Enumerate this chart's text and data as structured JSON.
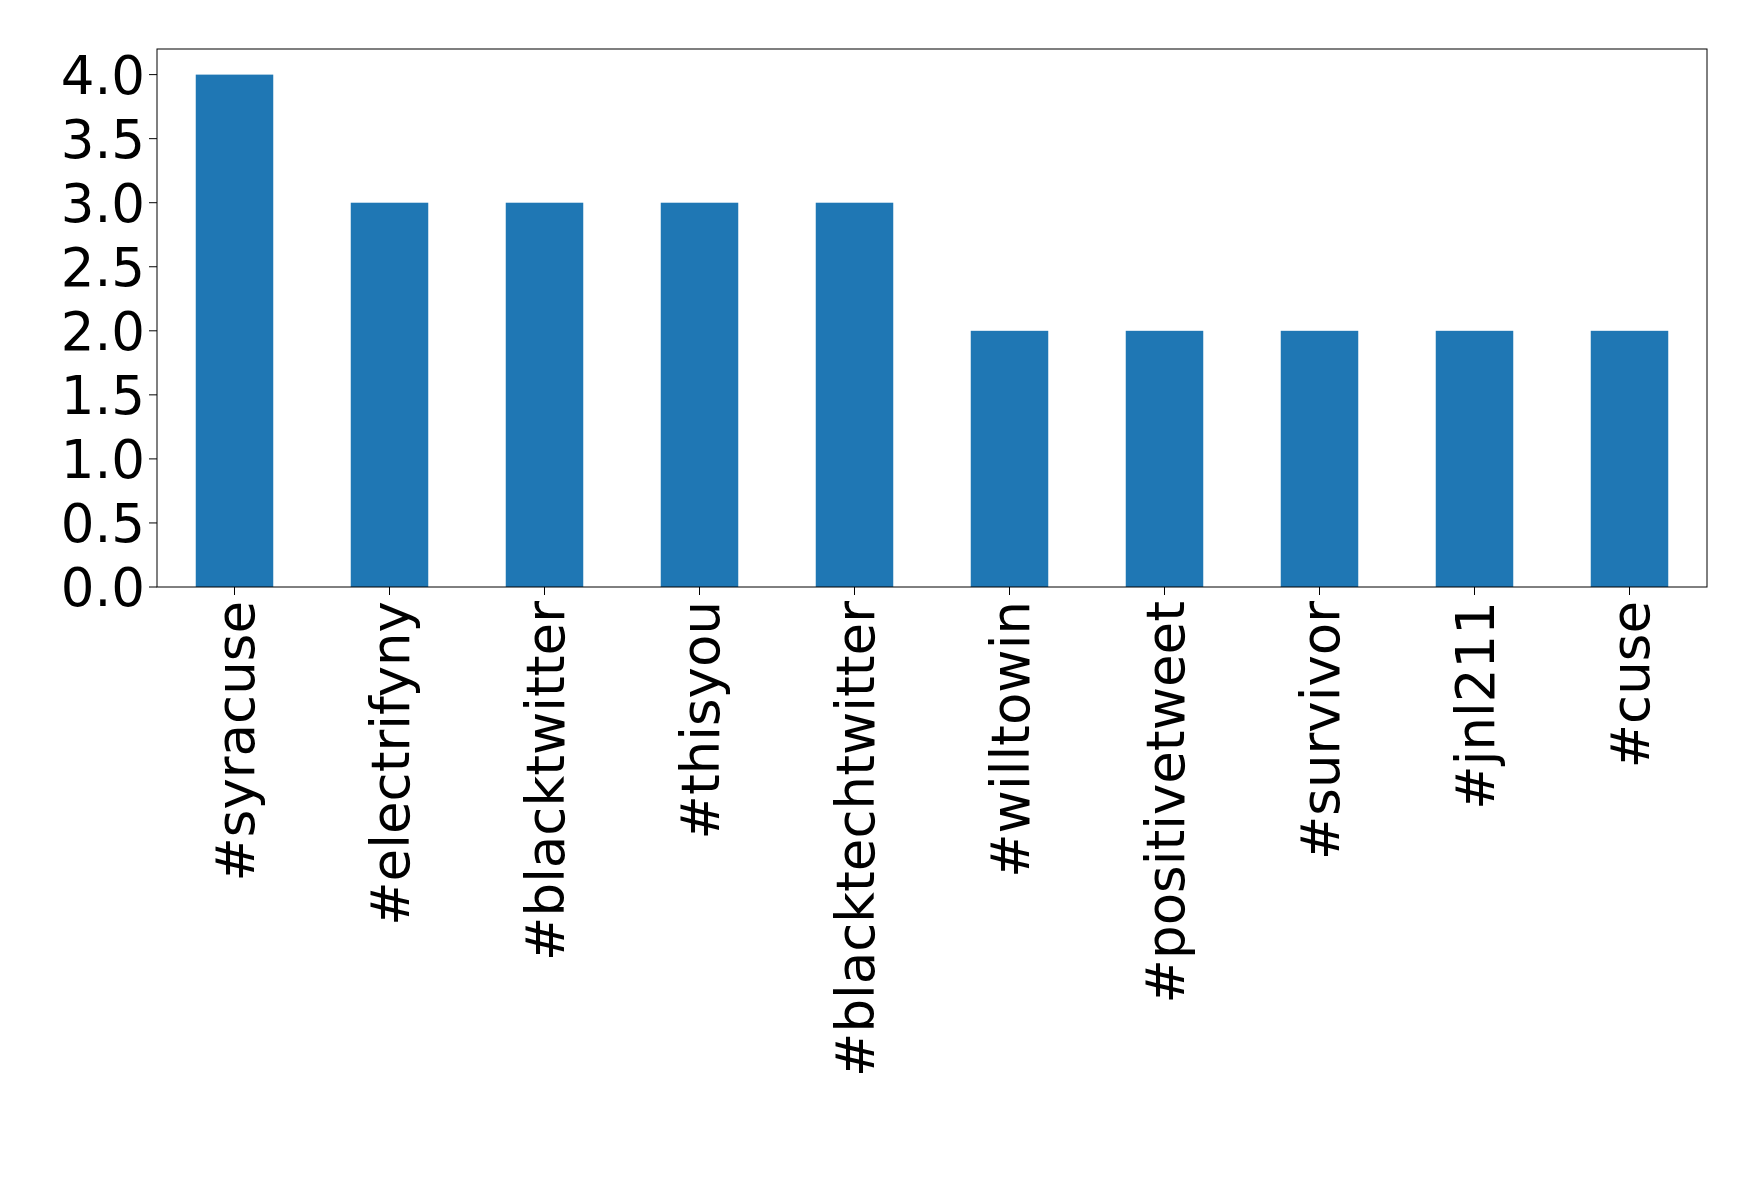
{
  "chart_data": {
    "type": "bar",
    "categories": [
      "#syracuse",
      "#electrifyny",
      "#blacktwitter",
      "#thisyou",
      "#blacktechtwitter",
      "#willtowin",
      "#positivetweet",
      "#survivor",
      "#jnl211",
      "#cuse"
    ],
    "values": [
      4,
      3,
      3,
      3,
      3,
      2,
      2,
      2,
      2,
      2
    ],
    "color": "#1f77b4",
    "ylim": [
      0,
      4.2
    ],
    "yticks": [
      {
        "value": 0,
        "label": "0.0"
      },
      {
        "value": 0.5,
        "label": "0.5"
      },
      {
        "value": 1,
        "label": "1.0"
      },
      {
        "value": 1.5,
        "label": "1.5"
      },
      {
        "value": 2,
        "label": "2.0"
      },
      {
        "value": 2.5,
        "label": "2.5"
      },
      {
        "value": 3,
        "label": "3.0"
      },
      {
        "value": 3.5,
        "label": "3.5"
      },
      {
        "value": 4,
        "label": "4.0"
      }
    ],
    "grid": false
  }
}
